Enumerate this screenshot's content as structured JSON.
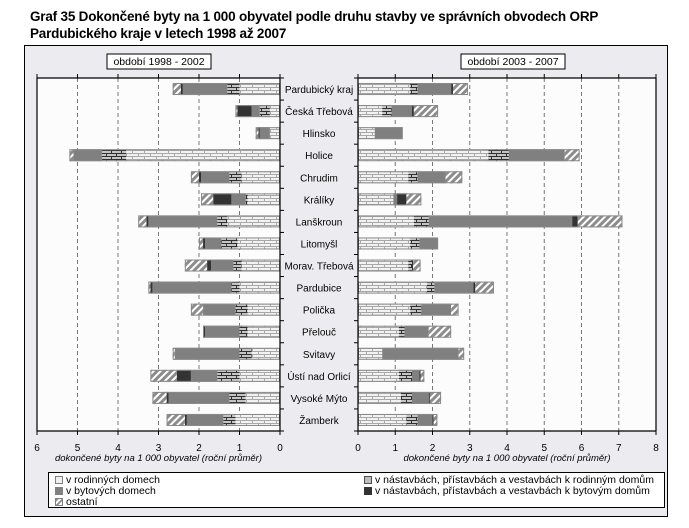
{
  "chart_data": {
    "type": "bar",
    "orientation": "horizontal-stacked",
    "title": "Graf 35 Dokončené byty na 1 000 obyvatel podle druhu stavby ve správních obvodech ORP Pardubického kraje v letech 1998 až 2007",
    "title_line1": "Graf 35 Dokončené byty na 1 000 obyvatel podle druhu stavby ve správních obvodech ORP",
    "title_line2": "Pardubického kraje v letech 1998 až 2007",
    "categories": [
      "Pardubický kraj",
      "Česká Třebová",
      "Hlinsko",
      "Holice",
      "Chrudim",
      "Králíky",
      "Lanškroun",
      "Litomyšl",
      "Morav. Třebová",
      "Pardubice",
      "Polička",
      "Přelouč",
      "Svitavy",
      "Ústí nad Orlicí",
      "Vysoké Mýto",
      "Žamberk"
    ],
    "series_defs": [
      {
        "key": "rd",
        "name": "v rodinných domech",
        "color": "#e6e6e6",
        "pattern": "brick-light"
      },
      {
        "key": "nrd",
        "name": "v nástavbách, přístavbách a vestavbách k rodinným domům",
        "color": "#bdbdbd",
        "pattern": "brick-dark"
      },
      {
        "key": "byt",
        "name": "v bytových domech",
        "color": "#808080",
        "pattern": "solid"
      },
      {
        "key": "nbyt",
        "name": "v nástavbách, přístavbách a vestavbách k bytovým domům",
        "color": "#333333",
        "pattern": "solid"
      },
      {
        "key": "ost",
        "name": "ostatní",
        "color": "#8a8a8a",
        "pattern": "hatch"
      }
    ],
    "panels": [
      {
        "label": "období 1998 - 2002",
        "direction": "leftward",
        "xlim": [
          0,
          6
        ],
        "ticks": [
          "6",
          "5",
          "4",
          "3",
          "2",
          "1",
          "0"
        ],
        "xlabel": "dokončené byty na 1 000 obyvatel (roční průměr)",
        "values": {
          "rd": [
            1.0,
            0.25,
            0.25,
            3.8,
            0.95,
            0.8,
            1.3,
            1.05,
            0.95,
            1.0,
            0.8,
            0.8,
            0.7,
            1.0,
            0.85,
            1.1
          ],
          "nrd": [
            0.3,
            0.25,
            0.0,
            0.6,
            0.3,
            0.05,
            0.25,
            0.4,
            0.2,
            0.2,
            0.3,
            0.2,
            0.3,
            0.55,
            0.4,
            0.3
          ],
          "byt": [
            1.1,
            0.2,
            0.25,
            0.7,
            0.7,
            0.35,
            1.7,
            0.4,
            0.55,
            1.95,
            0.8,
            0.85,
            1.6,
            0.65,
            1.5,
            0.9
          ],
          "nbyt": [
            0.05,
            0.35,
            0.03,
            0.0,
            0.05,
            0.45,
            0.05,
            0.05,
            0.1,
            0.05,
            0.0,
            0.05,
            0.0,
            0.35,
            0.05,
            0.05
          ],
          "ost": [
            0.2,
            0.05,
            0.07,
            0.1,
            0.2,
            0.3,
            0.2,
            0.1,
            0.55,
            0.05,
            0.3,
            0.0,
            0.05,
            0.65,
            0.35,
            0.45
          ]
        }
      },
      {
        "label": "období 2003 - 2007",
        "direction": "rightward",
        "xlim": [
          0,
          8
        ],
        "ticks": [
          "0",
          "1",
          "2",
          "3",
          "4",
          "5",
          "6",
          "7",
          "8"
        ],
        "xlabel": "dokončené byty na 1 000 obyvatel (roční průměr)",
        "values": {
          "rd": [
            1.4,
            0.65,
            0.45,
            3.5,
            1.35,
            0.95,
            1.5,
            1.4,
            1.35,
            1.85,
            1.4,
            1.1,
            0.65,
            1.1,
            1.15,
            1.3
          ],
          "nrd": [
            0.2,
            0.25,
            0.0,
            0.55,
            0.25,
            0.0,
            0.4,
            0.25,
            0.1,
            0.2,
            0.3,
            0.15,
            0.0,
            0.35,
            0.3,
            0.3
          ],
          "byt": [
            0.9,
            0.55,
            0.75,
            1.5,
            0.75,
            0.1,
            3.85,
            0.5,
            0.0,
            1.05,
            0.8,
            0.65,
            2.05,
            0.2,
            0.45,
            0.4
          ],
          "nbyt": [
            0.05,
            0.05,
            0.0,
            0.0,
            0.0,
            0.25,
            0.15,
            0.0,
            0.03,
            0.05,
            0.0,
            0.0,
            0.0,
            0.03,
            0.03,
            0.03
          ],
          "ost": [
            0.4,
            0.65,
            0.0,
            0.4,
            0.45,
            0.4,
            1.2,
            0.0,
            0.2,
            0.5,
            0.2,
            0.6,
            0.15,
            0.1,
            0.3,
            0.1
          ]
        }
      }
    ],
    "grid": true,
    "legend_position": "bottom"
  },
  "legend": {
    "rd": "v rodinných domech",
    "byt": "v bytových domech",
    "ost": "ostatní",
    "nrd": "v nástavbách, přístavbách a vestavbách k rodinným domům",
    "nbyt": "v nástavbách, přístavbách a vestavbách k bytovým domům"
  }
}
